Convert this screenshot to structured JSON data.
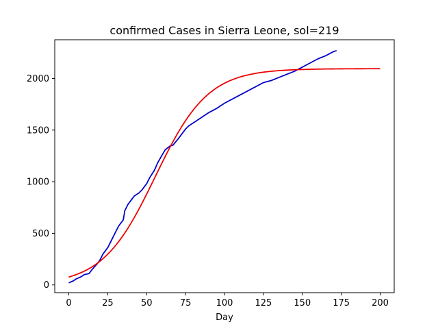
{
  "chart_data": {
    "type": "line",
    "title": "confirmed Cases in Sierra Leone, sol=219",
    "xlabel": "Day",
    "ylabel": "",
    "xlim": [
      -9,
      209
    ],
    "ylim": [
      -75,
      2375
    ],
    "xticks": [
      0,
      25,
      50,
      75,
      100,
      125,
      150,
      175,
      200
    ],
    "yticks": [
      0,
      500,
      1000,
      1500,
      2000
    ],
    "grid": false,
    "series": [
      {
        "color": "#0000cc",
        "x": [
          0,
          3,
          5,
          8,
          10,
          13,
          15,
          18,
          20,
          22,
          25,
          27,
          30,
          32,
          35,
          36,
          38,
          40,
          42,
          45,
          47,
          50,
          52,
          55,
          57,
          60,
          62,
          65,
          67,
          70,
          72,
          75,
          77,
          80,
          85,
          90,
          95,
          100,
          105,
          110,
          115,
          120,
          125,
          130,
          135,
          140,
          145,
          150,
          155,
          160,
          165,
          170,
          172
        ],
        "y": [
          20,
          40,
          60,
          80,
          100,
          110,
          150,
          200,
          240,
          300,
          360,
          420,
          510,
          570,
          630,
          720,
          780,
          820,
          860,
          890,
          920,
          980,
          1040,
          1110,
          1180,
          1260,
          1310,
          1345,
          1355,
          1410,
          1450,
          1510,
          1540,
          1570,
          1620,
          1670,
          1710,
          1760,
          1800,
          1840,
          1880,
          1920,
          1960,
          1980,
          2010,
          2040,
          2070,
          2110,
          2150,
          2190,
          2220,
          2260,
          2270
        ]
      },
      {
        "color": "#ee0000",
        "model": "logistic",
        "K": 2095,
        "r": 0.059,
        "t0": 55.5,
        "x_range": [
          0,
          200
        ]
      }
    ]
  }
}
